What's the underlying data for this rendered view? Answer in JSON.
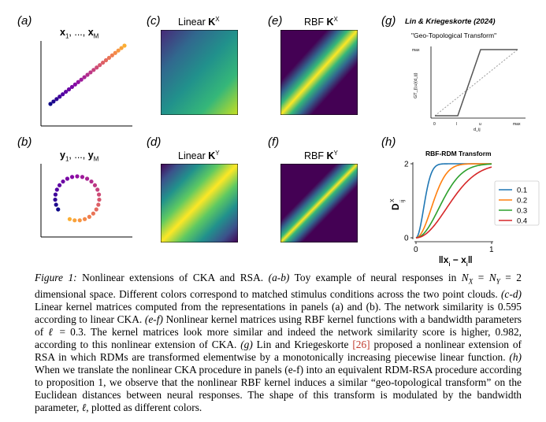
{
  "panels": {
    "a": {
      "label": "(a)",
      "title": "x",
      "title_sub1": "1",
      "title_mid": ", ..., ",
      "title_end": "x",
      "title_sub2": "M"
    },
    "b": {
      "label": "(b)",
      "title": "y",
      "title_sub1": "1",
      "title_mid": ", ..., ",
      "title_end": "y",
      "title_sub2": "M"
    },
    "c": {
      "label": "(c)",
      "title_text": "Linear ",
      "title_bold": "K",
      "title_sup": "X"
    },
    "d": {
      "label": "(d)",
      "title_text": "Linear ",
      "title_bold": "K",
      "title_sup": "Y"
    },
    "e": {
      "label": "(e)",
      "title_text": "RBF ",
      "title_bold": "K",
      "title_sup": "X"
    },
    "f": {
      "label": "(f)",
      "title_text": "RBF ",
      "title_bold": "K",
      "title_sup": "Y"
    },
    "g": {
      "label": "(g)",
      "title": "Lin & Kriegeskorte (2024)",
      "subtitle": "\"Geo-Topological Transform\"",
      "ylabel": "GT_{l,u}(d_ij)",
      "xlabel": "d_ij",
      "yticks": [
        "max"
      ],
      "xticks": [
        "0",
        "l",
        "u",
        "max"
      ]
    },
    "h": {
      "label": "(h)",
      "title": "RBF-RDM Transform",
      "ylabel": "D",
      "ylabel_sup": "X",
      "ylabel_sub": "ij",
      "xlabel": "‖x",
      "xlabel_i": "i",
      "xlabel_mid": " − x",
      "xlabel_j": "j",
      "xlabel_end": "‖",
      "yticks": [
        "0",
        "2"
      ],
      "xticks": [
        "0",
        "1"
      ]
    }
  },
  "colors": {
    "series_0_1": "#1f77b4",
    "series_0_2": "#ff7f0e",
    "series_0_3": "#2ca02c",
    "series_0_4": "#d62728"
  },
  "chart_data": {
    "type": "line",
    "title": "RBF-RDM Transform",
    "xlabel": "‖x_i − x_j‖",
    "ylabel": "D^X_ij",
    "xlim": [
      0,
      1
    ],
    "ylim": [
      0,
      2
    ],
    "legend_position": "right",
    "series": [
      {
        "name": "0.1",
        "ell": 0.1
      },
      {
        "name": "0.2",
        "ell": 0.2
      },
      {
        "name": "0.3",
        "ell": 0.3
      },
      {
        "name": "0.4",
        "ell": 0.4
      }
    ]
  },
  "caption": {
    "fig": "Figure 1:",
    "p1": " Nonlinear extensions of CKA and RSA. ",
    "ab": "(a-b)",
    "p2": " Toy example of neural responses in ",
    "math1": "N",
    "math1_sub": "X",
    "math_eq": " = ",
    "math2": "N",
    "math2_sub": "Y",
    "math_eq2": " = 2",
    "p3": " dimensional space. Different colors correspond to matched stimulus conditions across the two point clouds. ",
    "cd": "(c-d)",
    "p4": " Linear kernel matrices computed from the representations in panels (a) and (b). The network similarity is 0.595 according to linear CKA. ",
    "ef": "(e-f)",
    "p5": " Nonlinear kernel matrices using RBF kernel functions with a bandwidth parameters of ",
    "ell": "ℓ",
    "p6": " = 0.3. The kernel matrices look more similar and indeed the network similarity score is higher, 0.982, according to this nonlinear extension of CKA. ",
    "g": "(g)",
    "p7": " Lin and Kriegeskorte ",
    "ref": "[26]",
    "p8": " proposed a nonlinear extension of RSA in which RDMs are transformed elementwise by a monotonically increasing piecewise linear function. ",
    "h": "(h)",
    "p9": " When we translate the nonlinear CKA procedure in panels (e-f) into an equivalent RDM-RSA procedure according to proposition 1, we observe that the nonlinear RBF kernel induces a similar “geo-topological transform” on the Euclidean distances between neural responses. The shape of this transform is modulated by the bandwidth parameter, ",
    "ell2": "ℓ",
    "p10": ", plotted as different colors."
  }
}
